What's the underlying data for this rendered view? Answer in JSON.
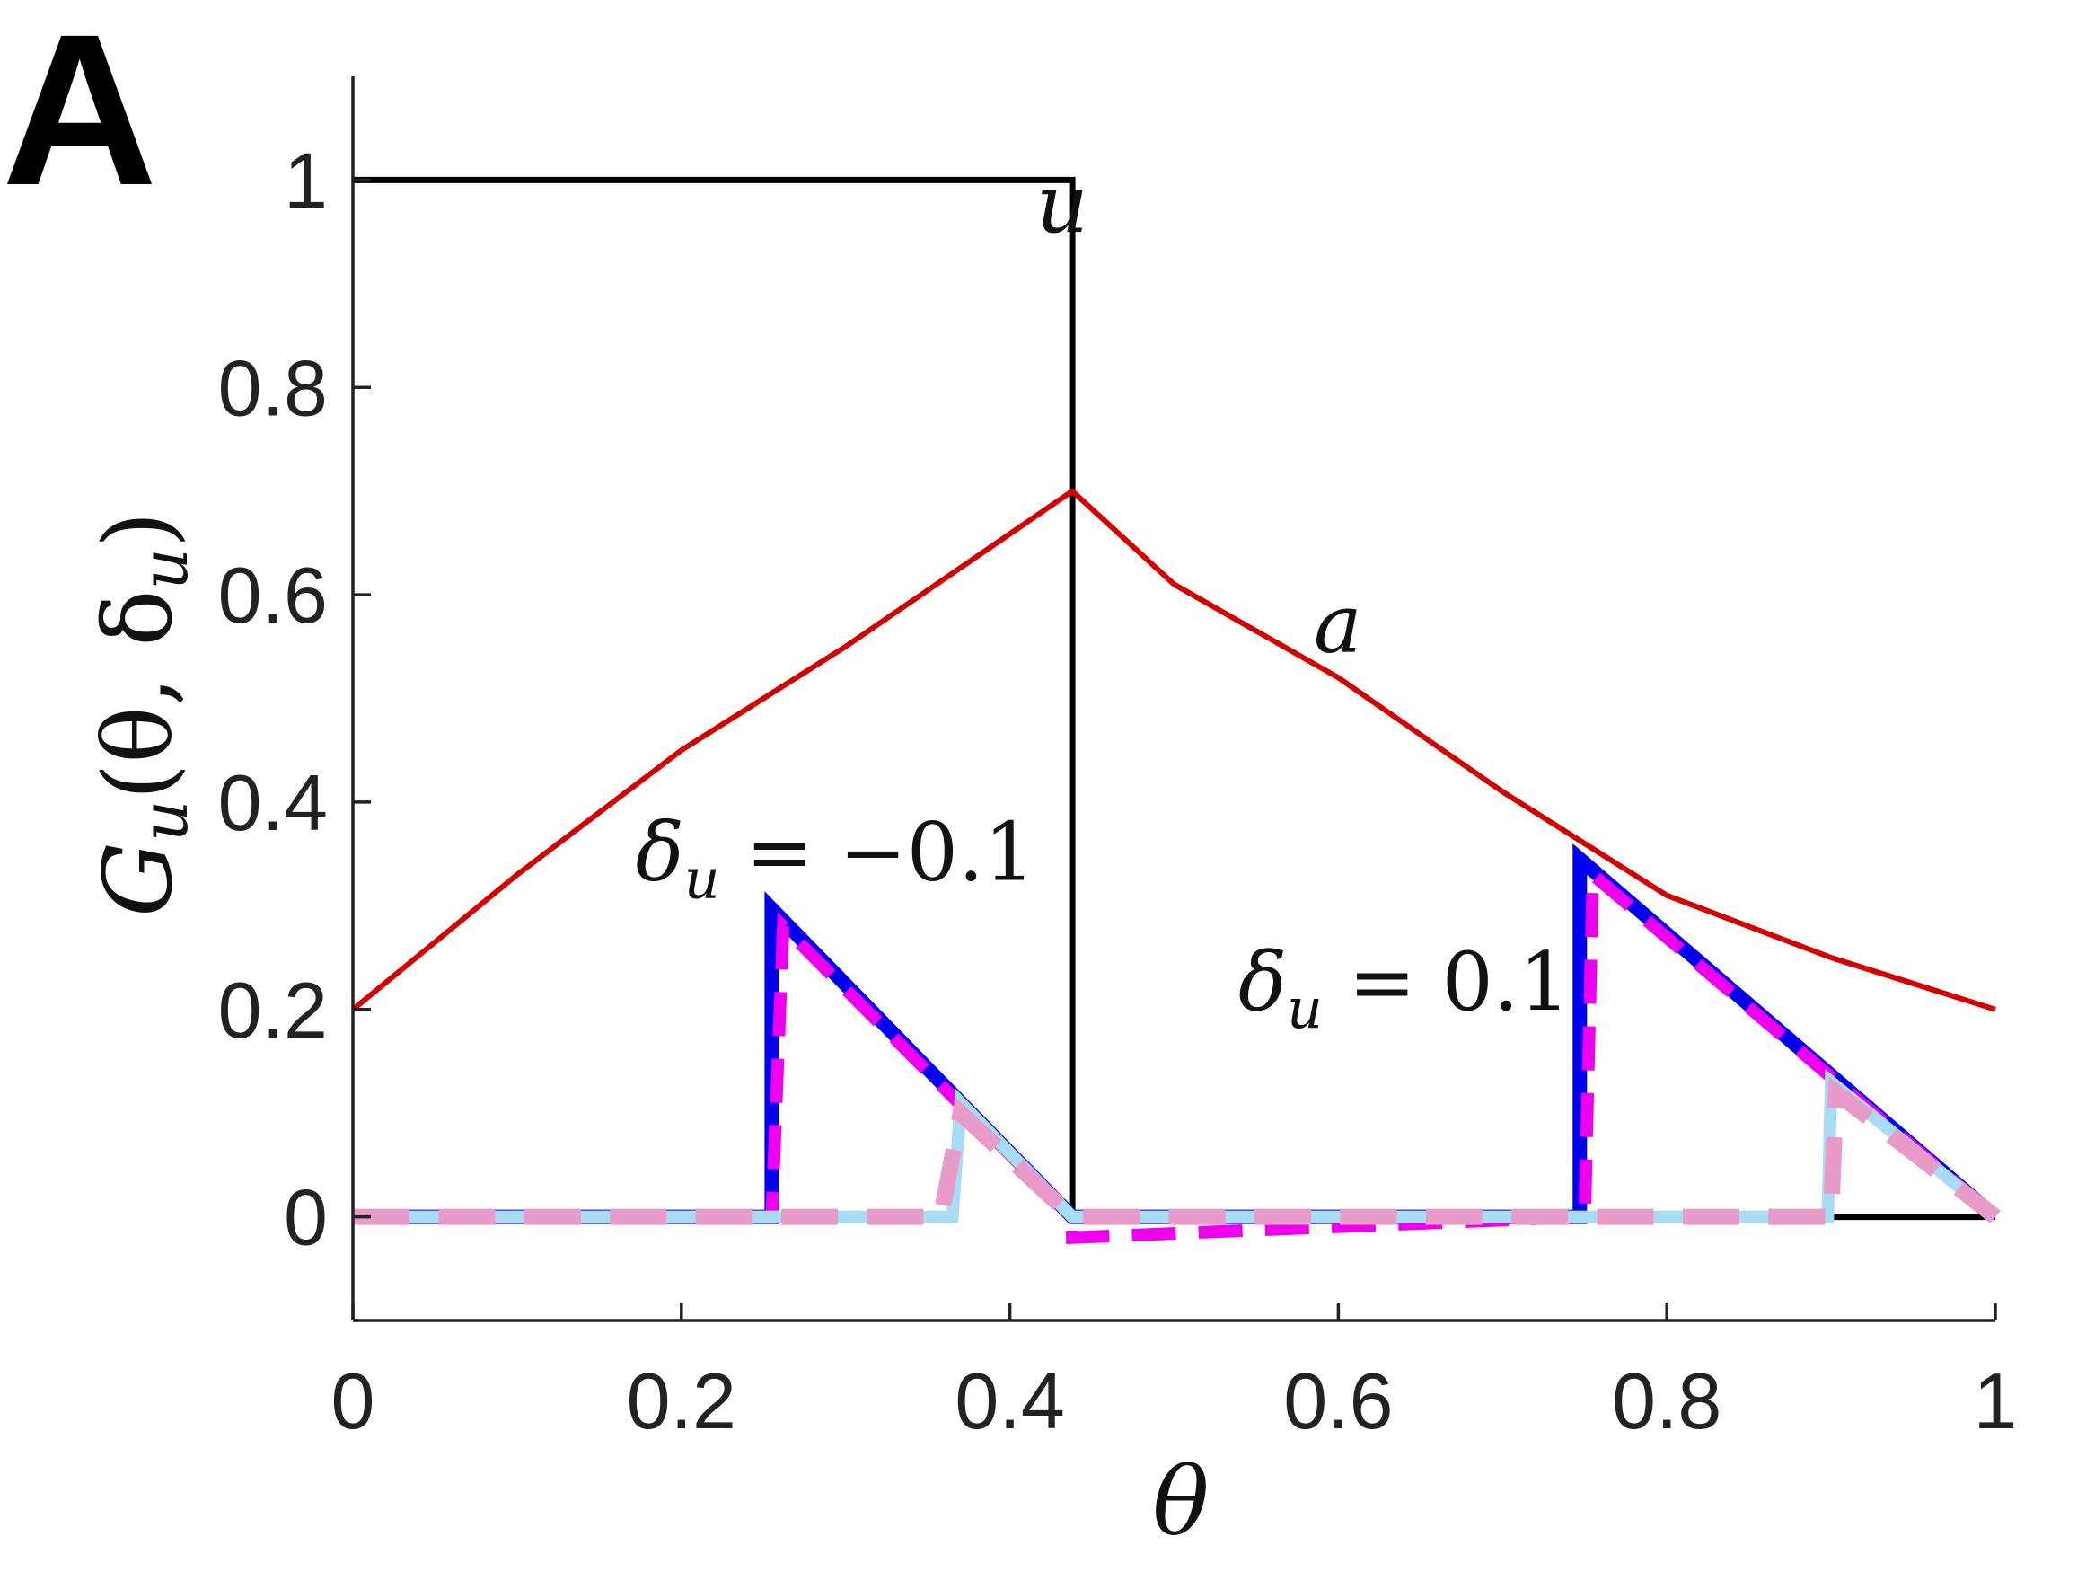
{
  "panel_label": "A",
  "chart_data": {
    "type": "line",
    "xlabel": "θ",
    "ylabel": {
      "G": "G",
      "sub": "u",
      "args": "(θ, δ",
      "args_sub": "u",
      "close": ")"
    },
    "xlim": [
      0,
      1
    ],
    "ylim": [
      -0.1,
      1.1
    ],
    "xticks": [
      0,
      0.2,
      0.4,
      0.6,
      0.8,
      1
    ],
    "xtick_labels": [
      "0",
      "0.2",
      "0.4",
      "0.6",
      "0.8",
      "1"
    ],
    "yticks": [
      0,
      0.2,
      0.4,
      0.6,
      0.8,
      1
    ],
    "ytick_labels": [
      "0",
      "0.2",
      "0.4",
      "0.6",
      "0.8",
      "1"
    ],
    "grid": false,
    "series": [
      {
        "color": "#000000",
        "style": "solid",
        "width": 7,
        "x": [
          0,
          0.438,
          0.438,
          1
        ],
        "y": [
          1,
          1,
          0,
          0
        ]
      },
      {
        "color": "#d40000",
        "style": "solid",
        "width": 6,
        "x": [
          0,
          0.1,
          0.2,
          0.3,
          0.438,
          0.5,
          0.6,
          0.7,
          0.8,
          0.9,
          1
        ],
        "y": [
          0.2,
          0.33,
          0.45,
          0.55,
          0.7,
          0.61,
          0.52,
          0.41,
          0.31,
          0.25,
          0.2
        ]
      },
      {
        "color": "#0000ee",
        "style": "solid",
        "width": 16,
        "x": [
          0,
          0.255,
          0.255,
          0.438,
          0.438,
          0.747,
          0.747,
          1
        ],
        "y": [
          0,
          0,
          0.297,
          0,
          0,
          0,
          0.345,
          0
        ]
      },
      {
        "color": "#ee00ee",
        "style": "dashed",
        "width": 14,
        "x": [
          0,
          0.255,
          0.262,
          0.438,
          0.438,
          0.75,
          0.755,
          1
        ],
        "y": [
          0,
          0,
          0.28,
          0,
          -0.02,
          0,
          0.33,
          0
        ]
      },
      {
        "color": "#a8dcf5",
        "style": "solid",
        "width": 14,
        "x": [
          0,
          0.365,
          0.37,
          0.438,
          0.438,
          0.898,
          0.9,
          1
        ],
        "y": [
          0,
          0,
          0.11,
          0,
          0,
          0,
          0.13,
          0
        ]
      },
      {
        "color": "#e89ac8",
        "style": "dashed",
        "width": 18,
        "x": [
          0,
          0.358,
          0.37,
          0.438,
          0.9,
          0.903,
          1
        ],
        "y": [
          0,
          0,
          0.1,
          0,
          0,
          0.12,
          0
        ]
      }
    ],
    "annotations": [
      {
        "text": "u",
        "x": 0.416,
        "y": 0.95
      },
      {
        "text": "a",
        "x": 0.585,
        "y": 0.545
      },
      {
        "main": "δ",
        "sub": "u",
        "eq": " = −0.1",
        "x": 0.172,
        "y": 0.325
      },
      {
        "main": "δ",
        "sub": "u",
        "eq": " = 0.1",
        "x": 0.539,
        "y": 0.2
      }
    ]
  }
}
